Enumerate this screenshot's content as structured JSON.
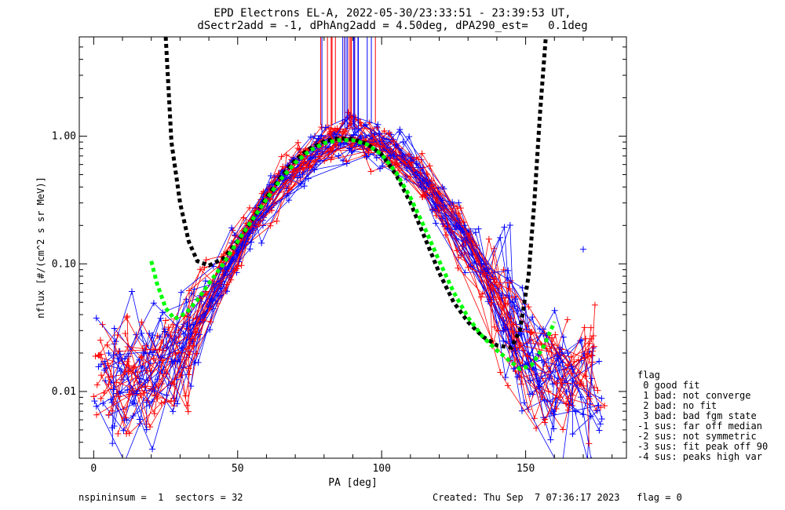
{
  "chart_data": {
    "type": "line",
    "title_line1": "EPD Electrons EL-A, 2022-05-30/23:33:51 - 23:39:53 UT,",
    "title_line2": "dSectr2add = -1, dPhAng2add = 4.50deg, dPA290_est=   0.1deg",
    "xlabel": "PA [deg]",
    "ylabel": "nflux [#/(cm^2 s sr MeV)]",
    "xlim": [
      -5,
      185
    ],
    "ylim": [
      0.003,
      6.0
    ],
    "yscale": "log",
    "x_ticks": [
      0,
      50,
      100,
      150
    ],
    "y_ticks": [
      0.01,
      0.1,
      1.0
    ],
    "y_tick_labels": [
      "0.01",
      "0.10",
      "1.00"
    ],
    "colors": {
      "blue": "#0000ff",
      "red": "#ff0000",
      "green": "#00ff00",
      "black": "#000000"
    },
    "series": [
      {
        "color": "black",
        "style": "dotted-thick",
        "x": [
          25,
          27,
          30,
          33,
          36,
          40,
          45,
          50,
          55,
          60,
          65,
          70,
          75,
          80,
          85,
          90,
          95,
          100,
          105,
          110,
          115,
          120,
          125,
          130,
          135,
          140,
          145,
          148,
          151,
          153,
          155,
          157
        ],
        "y": [
          6.0,
          0.9,
          0.3,
          0.15,
          0.105,
          0.097,
          0.11,
          0.15,
          0.22,
          0.33,
          0.48,
          0.65,
          0.8,
          0.91,
          0.96,
          0.95,
          0.87,
          0.72,
          0.5,
          0.3,
          0.16,
          0.085,
          0.05,
          0.035,
          0.027,
          0.023,
          0.022,
          0.03,
          0.08,
          0.3,
          1.5,
          6.0
        ]
      },
      {
        "color": "green",
        "style": "dotted-thick",
        "x": [
          20,
          22,
          25,
          28,
          32,
          36,
          40,
          45,
          50,
          55,
          60,
          65,
          70,
          75,
          80,
          85,
          90,
          95,
          100,
          105,
          110,
          115,
          120,
          125,
          130,
          135,
          140,
          145,
          148,
          152,
          156,
          160
        ],
        "y": [
          0.105,
          0.07,
          0.045,
          0.037,
          0.041,
          0.052,
          0.07,
          0.1,
          0.15,
          0.22,
          0.32,
          0.46,
          0.62,
          0.77,
          0.88,
          0.93,
          0.93,
          0.86,
          0.72,
          0.52,
          0.33,
          0.19,
          0.105,
          0.06,
          0.038,
          0.027,
          0.021,
          0.017,
          0.015,
          0.016,
          0.022,
          0.035
        ]
      }
    ],
    "scatter_seed": 20220530
  },
  "footer": {
    "left": "nspininsum =  1  sectors = 32",
    "right": "Created: Thu Sep  7 07:36:17 2023   flag = 0"
  },
  "legend": {
    "title": "flag",
    "items": [
      " 0 good fit",
      " 1 bad: not converge",
      " 2 bad: no fit",
      " 3 bad: bad fgm state",
      "-1 sus: far off median",
      "-2 sus: not symmetric",
      "-3 sus: fit peak off 90",
      "-4 sus: peaks high var"
    ]
  }
}
